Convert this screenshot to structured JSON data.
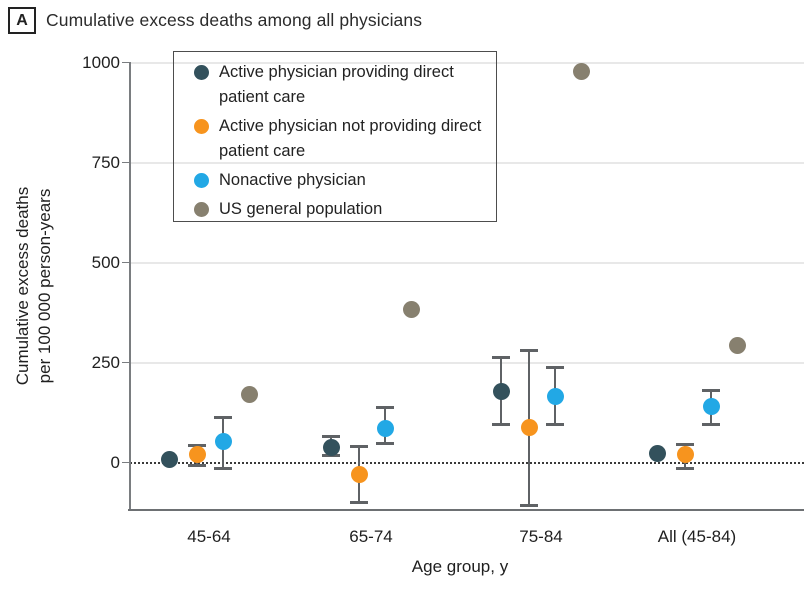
{
  "header": {
    "panel_label": "A",
    "title": "Cumulative excess deaths among all physicians"
  },
  "chart_data": {
    "type": "scatter",
    "title": "Cumulative excess deaths among all physicians",
    "xlabel": "Age group, y",
    "ylabel_lines": [
      "Cumulative excess deaths",
      "per 100 000 person-years"
    ],
    "categories": [
      "45-64",
      "65-74",
      "75-84",
      "All (45-84)"
    ],
    "yticks": [
      0,
      250,
      500,
      750,
      1000
    ],
    "ytick_labels": [
      "0",
      "250",
      "500",
      "750",
      "1000"
    ],
    "ylim": [
      -130,
      1000
    ],
    "grid": true,
    "zero_line": "dotted",
    "legend_position": "top-left-inside",
    "colors": {
      "active_direct": "#33515C",
      "active_not_direct": "#F7941E",
      "nonactive": "#22A8E5",
      "us_population": "#87806F",
      "error_bar": "#5F6265",
      "gridline": "#E8E8E8"
    },
    "series": [
      {
        "name": "Active physician providing direct patient care",
        "color": "#33515C",
        "values": [
          8,
          38,
          178,
          23
        ],
        "ci_low": [
          null,
          18,
          95,
          null
        ],
        "ci_high": [
          null,
          65,
          262,
          null
        ]
      },
      {
        "name": "Active physician not providing direct patient care",
        "color": "#F7941E",
        "values": [
          20,
          -30,
          88,
          20
        ],
        "ci_low": [
          -8,
          -100,
          -108,
          -15
        ],
        "ci_high": [
          42,
          40,
          280,
          45
        ]
      },
      {
        "name": "Nonactive physician",
        "color": "#22A8E5",
        "values": [
          52,
          86,
          165,
          140
        ],
        "ci_low": [
          -15,
          48,
          95,
          95
        ],
        "ci_high": [
          112,
          137,
          238,
          180
        ]
      },
      {
        "name": "US general population",
        "color": "#87806F",
        "values": [
          170,
          383,
          977,
          293
        ],
        "ci_low": [
          null,
          null,
          null,
          null
        ],
        "ci_high": [
          null,
          null,
          null,
          null
        ]
      }
    ]
  }
}
